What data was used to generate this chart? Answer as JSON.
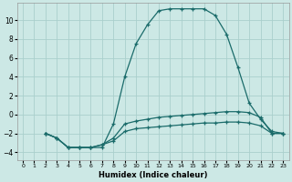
{
  "xlabel": "Humidex (Indice chaleur)",
  "bg_color": "#cce8e5",
  "grid_color": "#aacfcc",
  "line_color": "#1a6b6a",
  "xlim": [
    -0.5,
    23.5
  ],
  "ylim": [
    -4.8,
    11.8
  ],
  "xticks": [
    0,
    1,
    2,
    3,
    4,
    5,
    6,
    7,
    8,
    9,
    10,
    11,
    12,
    13,
    14,
    15,
    16,
    17,
    18,
    19,
    20,
    21,
    22,
    23
  ],
  "yticks": [
    -4,
    -2,
    0,
    2,
    4,
    6,
    8,
    10
  ],
  "line1_x": [
    2,
    3,
    4,
    5,
    6,
    7,
    8,
    9,
    10,
    11,
    12,
    13,
    14,
    15,
    16,
    17,
    18,
    19,
    20,
    21,
    22,
    23
  ],
  "line1_y": [
    -2,
    -2.5,
    -3.5,
    -3.5,
    -3.5,
    -3.5,
    -1.0,
    4.0,
    7.5,
    9.5,
    11.0,
    11.2,
    11.2,
    11.2,
    11.2,
    10.5,
    8.5,
    5.0,
    1.2,
    -0.5,
    -1.8,
    -2.0
  ],
  "line2_x": [
    2,
    3,
    4,
    5,
    6,
    7,
    8,
    9,
    10,
    11,
    12,
    13,
    14,
    15,
    16,
    17,
    18,
    19,
    20,
    21,
    22,
    23
  ],
  "line2_y": [
    -2,
    -2.5,
    -3.5,
    -3.5,
    -3.5,
    -3.2,
    -2.5,
    -1.0,
    -0.7,
    -0.5,
    -0.3,
    -0.2,
    -0.1,
    0.0,
    0.1,
    0.2,
    0.3,
    0.3,
    0.2,
    -0.3,
    -2.0,
    -2.0
  ],
  "line3_x": [
    2,
    3,
    4,
    5,
    6,
    7,
    8,
    9,
    10,
    11,
    12,
    13,
    14,
    15,
    16,
    17,
    18,
    19,
    20,
    21,
    22,
    23
  ],
  "line3_y": [
    -2,
    -2.5,
    -3.5,
    -3.5,
    -3.5,
    -3.2,
    -2.8,
    -1.8,
    -1.5,
    -1.4,
    -1.3,
    -1.2,
    -1.1,
    -1.0,
    -0.9,
    -0.9,
    -0.8,
    -0.8,
    -0.9,
    -1.2,
    -2.0,
    -2.0
  ]
}
